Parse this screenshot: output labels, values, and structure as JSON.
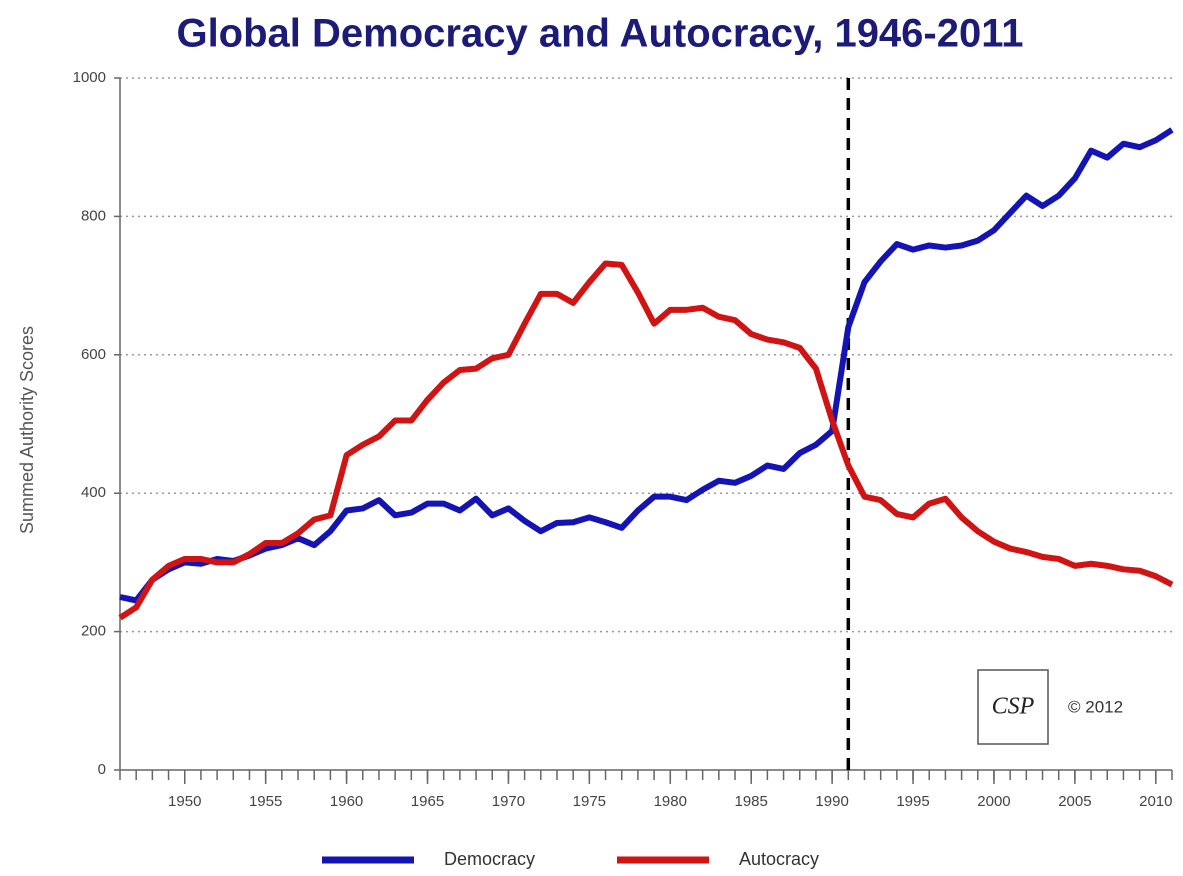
{
  "chart_data": {
    "type": "line",
    "title": "Global Democracy and Autocracy, 1946-2011",
    "y_label": "Summed Authority Scores",
    "x": [
      1946,
      1947,
      1948,
      1949,
      1950,
      1951,
      1952,
      1953,
      1954,
      1955,
      1956,
      1957,
      1958,
      1959,
      1960,
      1961,
      1962,
      1963,
      1964,
      1965,
      1966,
      1967,
      1968,
      1969,
      1970,
      1971,
      1972,
      1973,
      1974,
      1975,
      1976,
      1977,
      1978,
      1979,
      1980,
      1981,
      1982,
      1983,
      1984,
      1985,
      1986,
      1987,
      1988,
      1989,
      1990,
      1991,
      1992,
      1993,
      1994,
      1995,
      1996,
      1997,
      1998,
      1999,
      2000,
      2001,
      2002,
      2003,
      2004,
      2005,
      2006,
      2007,
      2008,
      2009,
      2010,
      2011
    ],
    "series": [
      {
        "name": "Democracy",
        "color": "#1414b4",
        "values": [
          250,
          245,
          275,
          290,
          300,
          298,
          305,
          302,
          310,
          320,
          325,
          335,
          325,
          345,
          375,
          378,
          390,
          368,
          372,
          385,
          385,
          375,
          392,
          368,
          378,
          360,
          345,
          357,
          358,
          365,
          358,
          350,
          375,
          395,
          395,
          390,
          405,
          418,
          415,
          425,
          440,
          435,
          458,
          470,
          490,
          640,
          705,
          735,
          760,
          752,
          758,
          755,
          758,
          765,
          780,
          805,
          830,
          815,
          830,
          855,
          895,
          885,
          905,
          900,
          910,
          925
        ]
      },
      {
        "name": "Autocracy",
        "color": "#d01414",
        "values": [
          220,
          235,
          275,
          295,
          305,
          305,
          300,
          300,
          312,
          328,
          328,
          342,
          362,
          368,
          455,
          470,
          482,
          505,
          505,
          535,
          560,
          578,
          580,
          595,
          600,
          645,
          688,
          688,
          675,
          705,
          732,
          730,
          690,
          645,
          665,
          665,
          668,
          655,
          650,
          630,
          622,
          618,
          610,
          580,
          505,
          440,
          395,
          390,
          370,
          365,
          385,
          392,
          365,
          345,
          330,
          320,
          315,
          308,
          305,
          295,
          298,
          295,
          290,
          288,
          280,
          268
        ]
      }
    ],
    "xlim": [
      1946,
      2011
    ],
    "xticks": [
      1950,
      1955,
      1960,
      1965,
      1970,
      1975,
      1980,
      1985,
      1990,
      1995,
      2000,
      2005,
      2010
    ],
    "ylim": [
      0,
      1000
    ],
    "yticks": [
      0,
      200,
      400,
      600,
      800,
      1000
    ],
    "grid": true,
    "vline": 1991,
    "logo": "CSP",
    "copyright": "© 2012"
  }
}
